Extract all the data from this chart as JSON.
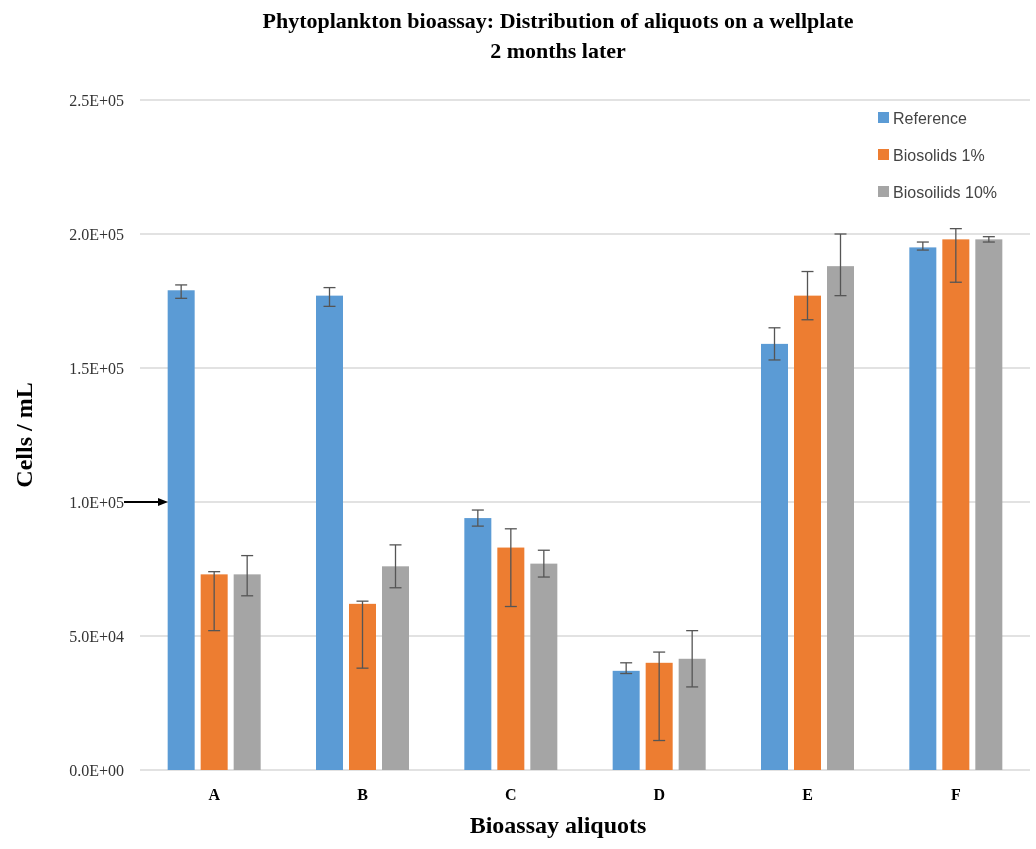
{
  "chart_data": {
    "type": "bar",
    "title": "Phytoplankton bioassay: Distribution of aliquots on a wellplate\n2 months later",
    "xlabel": "Bioassay aliquots",
    "ylabel": "Cells / mL",
    "categories": [
      "A",
      "B",
      "C",
      "D",
      "E",
      "F"
    ],
    "series": [
      {
        "name": "Reference",
        "color": "#5b9bd5",
        "values": [
          179000,
          177000,
          94000,
          37000,
          159000,
          195000
        ],
        "errors": [
          [
            176000,
            181000
          ],
          [
            173000,
            180000
          ],
          [
            91000,
            97000
          ],
          [
            36000,
            40000
          ],
          [
            153000,
            165000
          ],
          [
            194000,
            197000
          ]
        ]
      },
      {
        "name": "Biosolids 1%",
        "color": "#ed7d31",
        "values": [
          73000,
          62000,
          83000,
          40000,
          177000,
          198000
        ],
        "errors": [
          [
            52000,
            74000
          ],
          [
            38000,
            63000
          ],
          [
            61000,
            90000
          ],
          [
            11000,
            44000
          ],
          [
            168000,
            186000
          ],
          [
            182000,
            202000
          ]
        ]
      },
      {
        "name": "Biosoilids 10%",
        "color": "#a5a5a5",
        "values": [
          73000,
          76000,
          77000,
          41500,
          188000,
          198000
        ],
        "errors": [
          [
            65000,
            80000
          ],
          [
            68000,
            84000
          ],
          [
            72000,
            82000
          ],
          [
            31000,
            52000
          ],
          [
            177000,
            200000
          ],
          [
            197000,
            199000
          ]
        ]
      }
    ],
    "ylim": [
      0,
      250000
    ],
    "yticks": [
      {
        "value": 0,
        "label": "0.0E+00"
      },
      {
        "value": 50000,
        "label": "5.0E+04"
      },
      {
        "value": 100000,
        "label": "1.0E+05"
      },
      {
        "value": 150000,
        "label": "1.5E+05"
      },
      {
        "value": 200000,
        "label": "2.0E+05"
      },
      {
        "value": 250000,
        "label": "2.5E+05"
      }
    ],
    "grid": "y",
    "legend": "top right"
  }
}
